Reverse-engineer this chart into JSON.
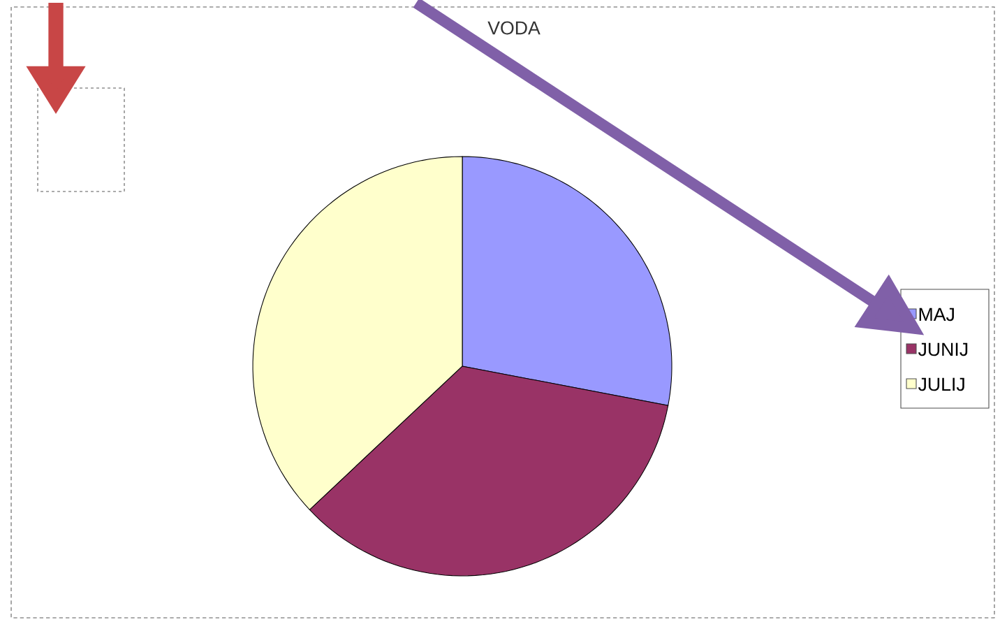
{
  "chart_data": {
    "type": "pie",
    "title": "VODA",
    "categories": [
      "MAJ",
      "JUNIJ",
      "JULIJ"
    ],
    "values": [
      28,
      35,
      37
    ],
    "colors": [
      "#9999ff",
      "#993366",
      "#ffffcc"
    ],
    "legend": "right"
  }
}
